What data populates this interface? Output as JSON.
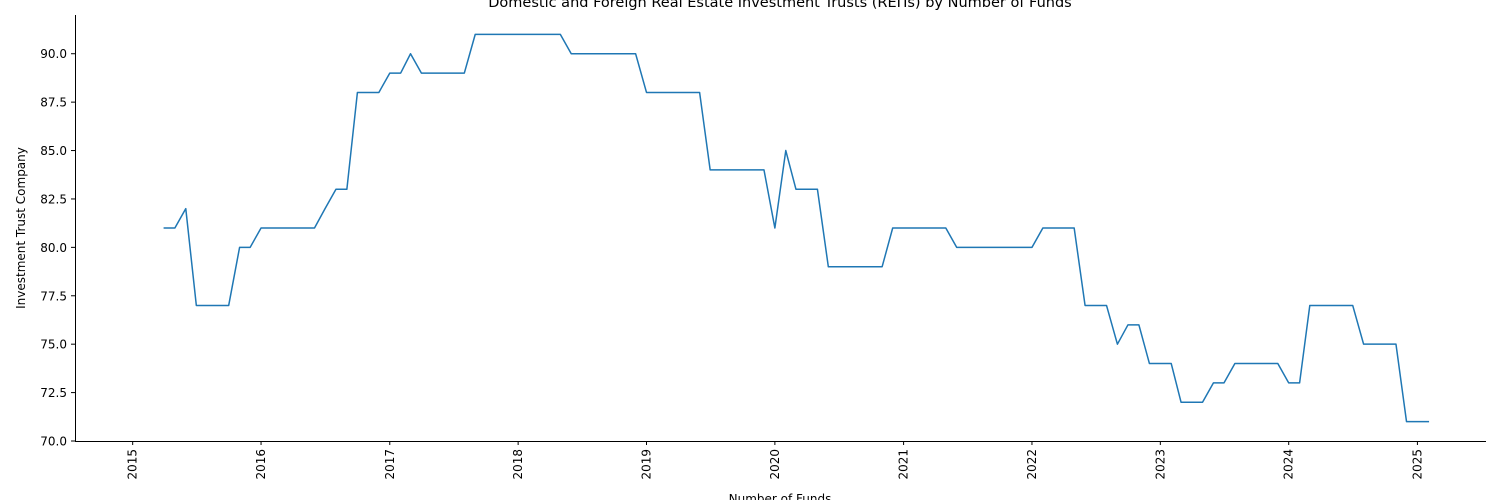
{
  "chart_data": {
    "type": "line",
    "title": "Domestic and Foreign Real Estate Investment Trusts (REITs) by Number of Funds",
    "xlabel": "Number of Funds",
    "ylabel": "Investment Trust Company",
    "xlim": [
      "2014-07-21",
      "2025-07-15"
    ],
    "ylim": [
      70.0,
      92.0
    ],
    "x_ticks": [
      "2015",
      "2016",
      "2017",
      "2018",
      "2019",
      "2020",
      "2021",
      "2022",
      "2023",
      "2024",
      "2025"
    ],
    "y_ticks": [
      "70.0",
      "72.5",
      "75.0",
      "77.5",
      "80.0",
      "82.5",
      "85.0",
      "87.5",
      "90.0"
    ],
    "grid": false,
    "legend": "none",
    "color": "#1f77b4",
    "series": [
      {
        "x": [
          "2015-04",
          "2015-05",
          "2015-06",
          "2015-07",
          "2015-08",
          "2015-09",
          "2015-10",
          "2015-11",
          "2015-12",
          "2016-01",
          "2016-02",
          "2016-03",
          "2016-04",
          "2016-05",
          "2016-06",
          "2016-07",
          "2016-08",
          "2016-09",
          "2016-10",
          "2016-11",
          "2016-12",
          "2017-01",
          "2017-02",
          "2017-03",
          "2017-04",
          "2017-05",
          "2017-06",
          "2017-07",
          "2017-08",
          "2017-09",
          "2017-10",
          "2017-11",
          "2017-12",
          "2018-01",
          "2018-02",
          "2018-03",
          "2018-04",
          "2018-05",
          "2018-06",
          "2018-07",
          "2018-08",
          "2018-09",
          "2018-10",
          "2018-11",
          "2018-12",
          "2019-01",
          "2019-02",
          "2019-03",
          "2019-04",
          "2019-05",
          "2019-06",
          "2019-07",
          "2019-08",
          "2019-09",
          "2019-10",
          "2019-11",
          "2019-12",
          "2020-01",
          "2020-02",
          "2020-03",
          "2020-04",
          "2020-05",
          "2020-06",
          "2020-07",
          "2020-08",
          "2020-09",
          "2020-10",
          "2020-11",
          "2020-12",
          "2021-01",
          "2021-02",
          "2021-03",
          "2021-04",
          "2021-05",
          "2021-06",
          "2021-07",
          "2021-08",
          "2021-09",
          "2021-10",
          "2021-11",
          "2021-12",
          "2022-01",
          "2022-02",
          "2022-03",
          "2022-04",
          "2022-05",
          "2022-06",
          "2022-07",
          "2022-08",
          "2022-09",
          "2022-10",
          "2022-11",
          "2022-12",
          "2023-01",
          "2023-02",
          "2023-03",
          "2023-04",
          "2023-05",
          "2023-06",
          "2023-07",
          "2023-08",
          "2023-09",
          "2023-10",
          "2023-11",
          "2023-12",
          "2024-01",
          "2024-02",
          "2024-03",
          "2024-04",
          "2024-05",
          "2024-06",
          "2024-07",
          "2024-08",
          "2024-09",
          "2024-10",
          "2024-11",
          "2024-12",
          "2025-01",
          "2025-02"
        ],
        "y": [
          81,
          81,
          82,
          77,
          77,
          77,
          77,
          80,
          80,
          81,
          81,
          81,
          81,
          81,
          81,
          82,
          83,
          83,
          88,
          88,
          88,
          89,
          89,
          90,
          89,
          89,
          89,
          89,
          89,
          91,
          91,
          91,
          91,
          91,
          91,
          91,
          91,
          91,
          90,
          90,
          90,
          90,
          90,
          90,
          90,
          88,
          88,
          88,
          88,
          88,
          88,
          84,
          84,
          84,
          84,
          84,
          84,
          81,
          85,
          83,
          83,
          83,
          79,
          79,
          79,
          79,
          79,
          79,
          81,
          81,
          81,
          81,
          81,
          81,
          80,
          80,
          80,
          80,
          80,
          80,
          80,
          80,
          81,
          81,
          81,
          81,
          77,
          77,
          77,
          75,
          76,
          76,
          74,
          74,
          74,
          72,
          72,
          72,
          73,
          73,
          74,
          74,
          74,
          74,
          74,
          73,
          73,
          77,
          77,
          77,
          77,
          77,
          75,
          75,
          75,
          75,
          71,
          71,
          71
        ]
      }
    ]
  }
}
